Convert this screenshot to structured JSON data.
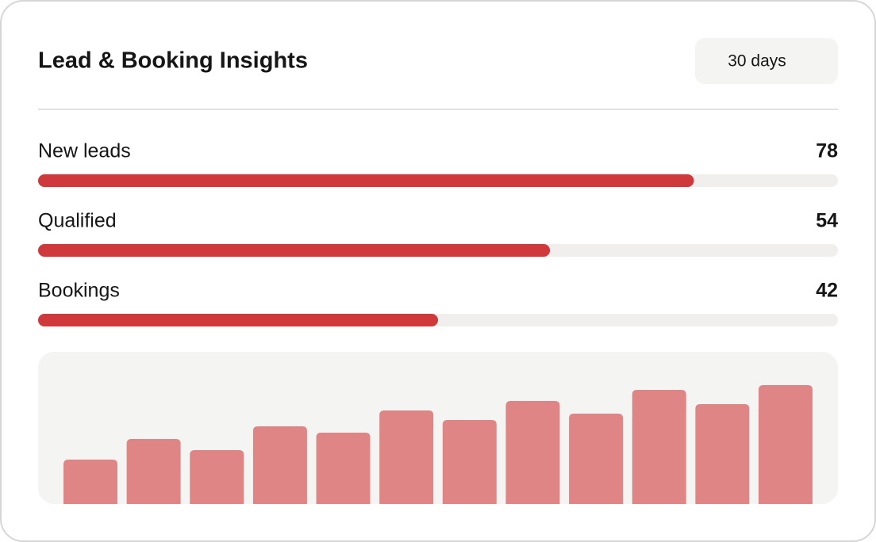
{
  "header": {
    "title": "Lead & Booking Insights",
    "range": "30 days"
  },
  "metrics": {
    "progress_lim": [
      0,
      100
    ],
    "color": "#d0393b",
    "track_color": "#f0efed",
    "items": [
      {
        "label": "New leads",
        "value": 78,
        "progress": 82
      },
      {
        "label": "Qualified",
        "value": 54,
        "progress": 64
      },
      {
        "label": "Bookings",
        "value": 42,
        "progress": 50
      }
    ]
  },
  "trend": {
    "type": "bar",
    "color": "#e08585",
    "ylim": [
      0,
      192
    ],
    "values": [
      56,
      82,
      68,
      98,
      90,
      118,
      106,
      130,
      114,
      144,
      126,
      150
    ]
  }
}
